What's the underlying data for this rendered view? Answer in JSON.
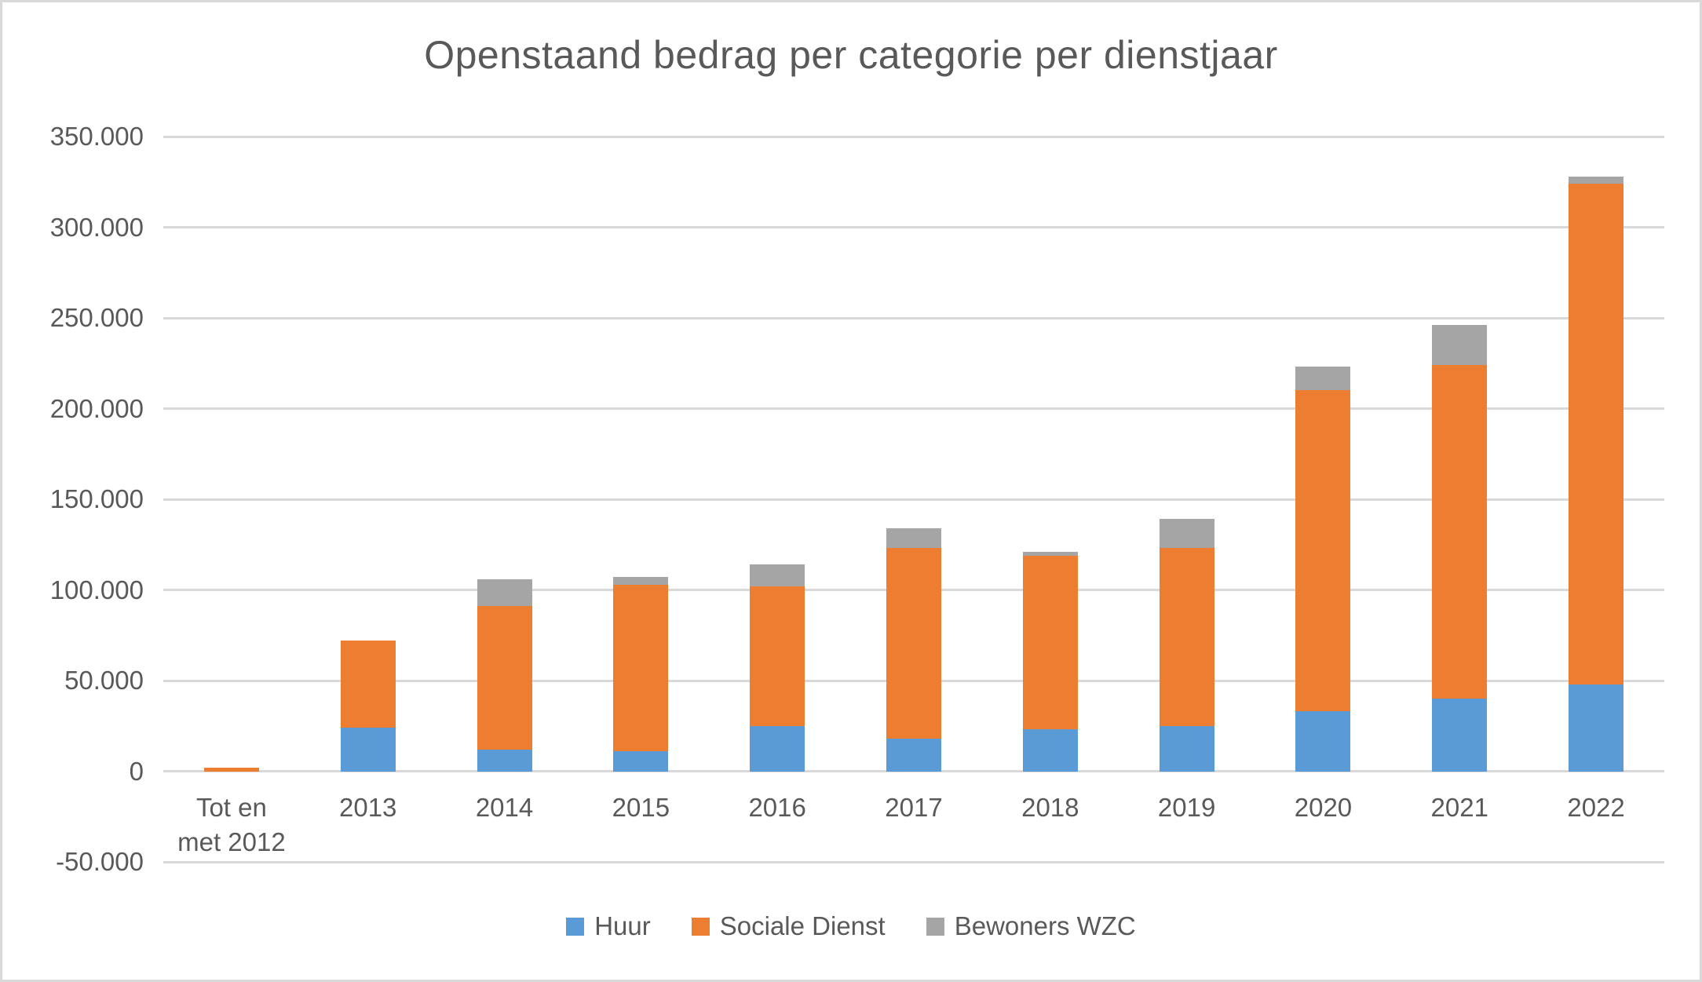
{
  "chart_data": {
    "type": "bar",
    "stacked": true,
    "title": "Openstaand bedrag per categorie per dienstjaar",
    "categories": [
      "Tot en met 2012",
      "2013",
      "2014",
      "2015",
      "2016",
      "2017",
      "2018",
      "2019",
      "2020",
      "2021",
      "2022"
    ],
    "x_axis": {
      "tick_labels": [
        "Tot en\nmet 2012",
        "2013",
        "2014",
        "2015",
        "2016",
        "2017",
        "2018",
        "2019",
        "2020",
        "2021",
        "2022"
      ]
    },
    "y_axis": {
      "min": -50000,
      "max": 350000,
      "step": 50000,
      "tick_values": [
        350000,
        300000,
        250000,
        200000,
        150000,
        100000,
        50000,
        0,
        -50000
      ],
      "tick_labels": [
        "350.000",
        "300.000",
        "250.000",
        "200.000",
        "150.000",
        "100.000",
        "50.000",
        "0",
        "-50.000"
      ]
    },
    "series": [
      {
        "name": "Huur",
        "color": "#5B9BD5",
        "values": [
          0,
          24000,
          12000,
          11000,
          25000,
          18000,
          23000,
          25000,
          33000,
          40000,
          48000
        ]
      },
      {
        "name": "Sociale Dienst",
        "color": "#ED7D31",
        "values": [
          2000,
          48000,
          79000,
          92000,
          77000,
          105000,
          96000,
          98000,
          177000,
          184000,
          276000
        ]
      },
      {
        "name": "Bewoners WZC",
        "color": "#A5A5A5",
        "values": [
          0,
          0,
          15000,
          4000,
          12000,
          11000,
          2000,
          16000,
          13000,
          22000,
          4000
        ]
      }
    ],
    "legend": {
      "position": "bottom",
      "items": [
        "Huur",
        "Sociale Dienst",
        "Bewoners WZC"
      ]
    },
    "grid": true,
    "styles": {
      "background": "#FFFFFF",
      "border_color": "#D9D9D9",
      "gridline_color": "#D9D9D9",
      "text_color": "#595959"
    }
  }
}
